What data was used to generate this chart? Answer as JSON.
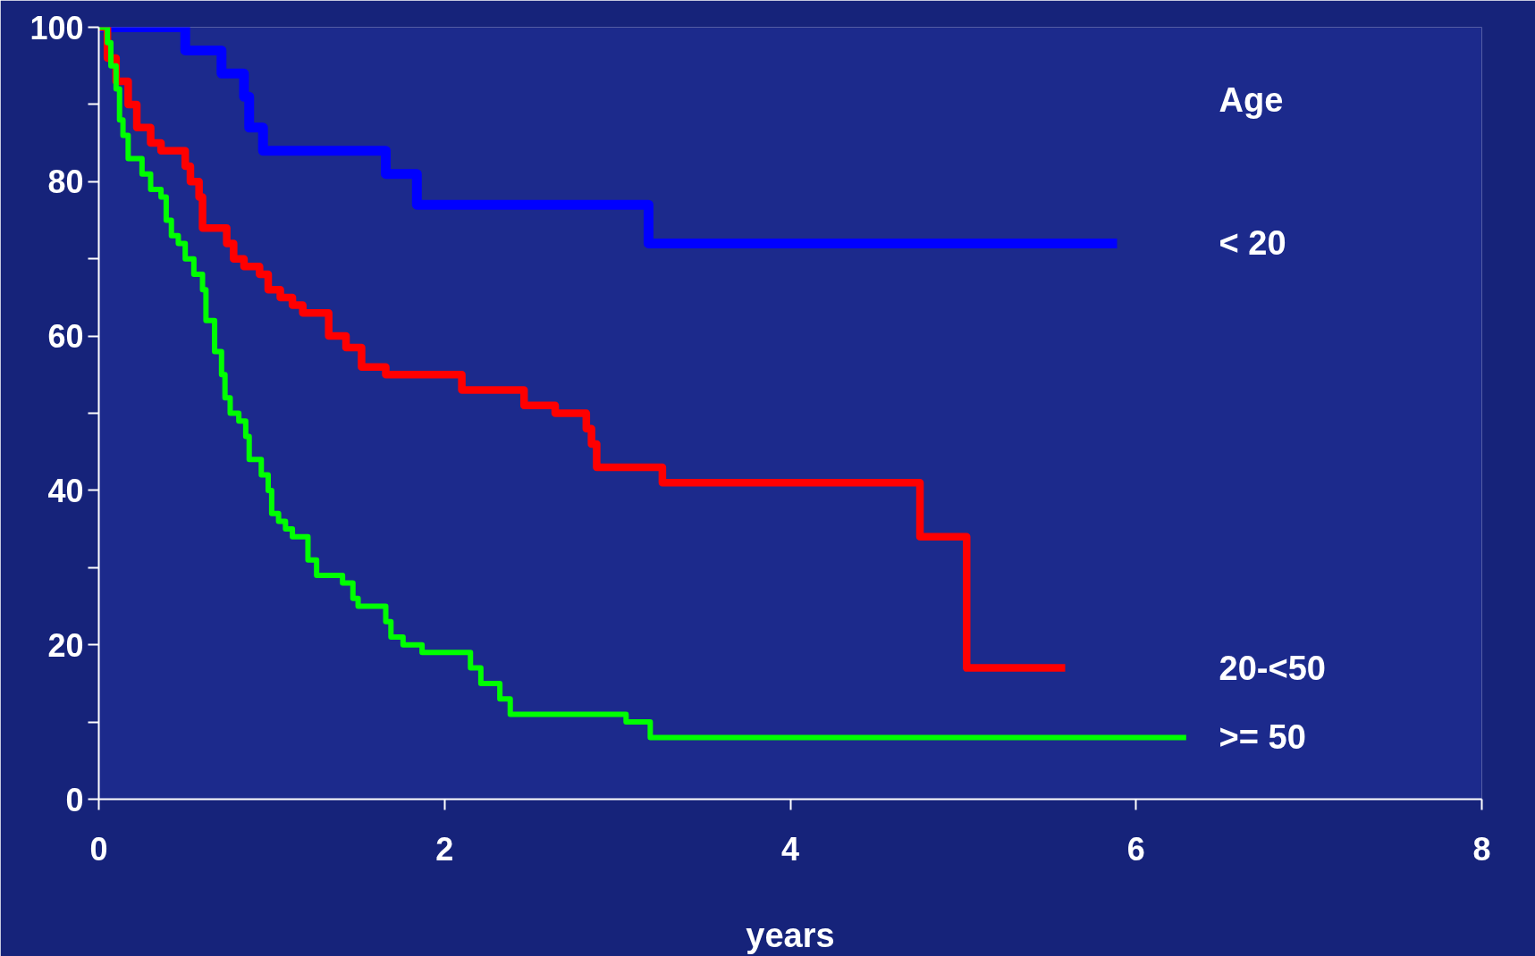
{
  "chart_data": {
    "type": "step",
    "xlabel": "years",
    "legend_title": "Age",
    "xlim": [
      0,
      8
    ],
    "xticks": [
      0,
      2,
      4,
      6,
      8
    ],
    "ylim": [
      0,
      100
    ],
    "yticks": [
      0,
      {
        "value": 10,
        "label": null
      },
      20,
      {
        "value": 30,
        "label": null
      },
      40,
      {
        "value": 50,
        "label": null
      },
      60,
      {
        "value": 70,
        "label": null
      },
      80,
      {
        "value": 90,
        "label": null
      },
      100
    ],
    "grid": false,
    "legend": "right",
    "line_style": "solid",
    "marker": "none",
    "series": [
      {
        "name": "< 20",
        "color": "#0000ff",
        "x": [
          0,
          0.5,
          0.71,
          0.84,
          0.87,
          0.95,
          1.66,
          1.84,
          3.18,
          5.89
        ],
        "values": [
          100,
          97,
          94,
          91,
          87,
          84,
          81,
          77,
          72,
          72
        ]
      },
      {
        "name": "20-<50",
        "color": "#ff0000",
        "x": [
          0,
          0.05,
          0.1,
          0.17,
          0.22,
          0.3,
          0.36,
          0.5,
          0.53,
          0.58,
          0.6,
          0.74,
          0.78,
          0.84,
          0.93,
          0.98,
          1.05,
          1.12,
          1.18,
          1.33,
          1.43,
          1.52,
          1.66,
          2.1,
          2.46,
          2.64,
          2.82,
          2.85,
          2.88,
          3.26,
          4.75,
          5.02,
          5.59
        ],
        "values": [
          100,
          96,
          93,
          90,
          87,
          85,
          84,
          82,
          80,
          78,
          74,
          72,
          70,
          69,
          68,
          66,
          65,
          64,
          63,
          60,
          58.5,
          56,
          55,
          53,
          51,
          50,
          48,
          46,
          43,
          41,
          34,
          17,
          17
        ]
      },
      {
        "name": ">= 50",
        "color": "#00ff00",
        "x": [
          0,
          0.05,
          0.07,
          0.1,
          0.12,
          0.14,
          0.17,
          0.25,
          0.3,
          0.36,
          0.39,
          0.42,
          0.46,
          0.5,
          0.55,
          0.6,
          0.62,
          0.67,
          0.71,
          0.73,
          0.76,
          0.81,
          0.85,
          0.87,
          0.94,
          0.98,
          1.0,
          1.04,
          1.08,
          1.12,
          1.21,
          1.26,
          1.41,
          1.47,
          1.5,
          1.66,
          1.69,
          1.76,
          1.87,
          2.15,
          2.21,
          2.32,
          2.38,
          3.05,
          3.19,
          6.29
        ],
        "values": [
          100,
          98,
          95,
          92,
          88,
          86,
          83,
          81,
          79,
          78,
          75,
          73,
          72,
          70,
          68,
          66,
          62,
          58,
          55,
          52,
          50,
          49,
          47,
          44,
          42,
          40,
          37,
          36,
          35,
          34,
          31,
          29,
          28,
          26,
          25,
          23,
          21,
          20,
          19,
          17,
          15,
          13,
          11,
          10,
          8,
          8
        ]
      }
    ]
  }
}
